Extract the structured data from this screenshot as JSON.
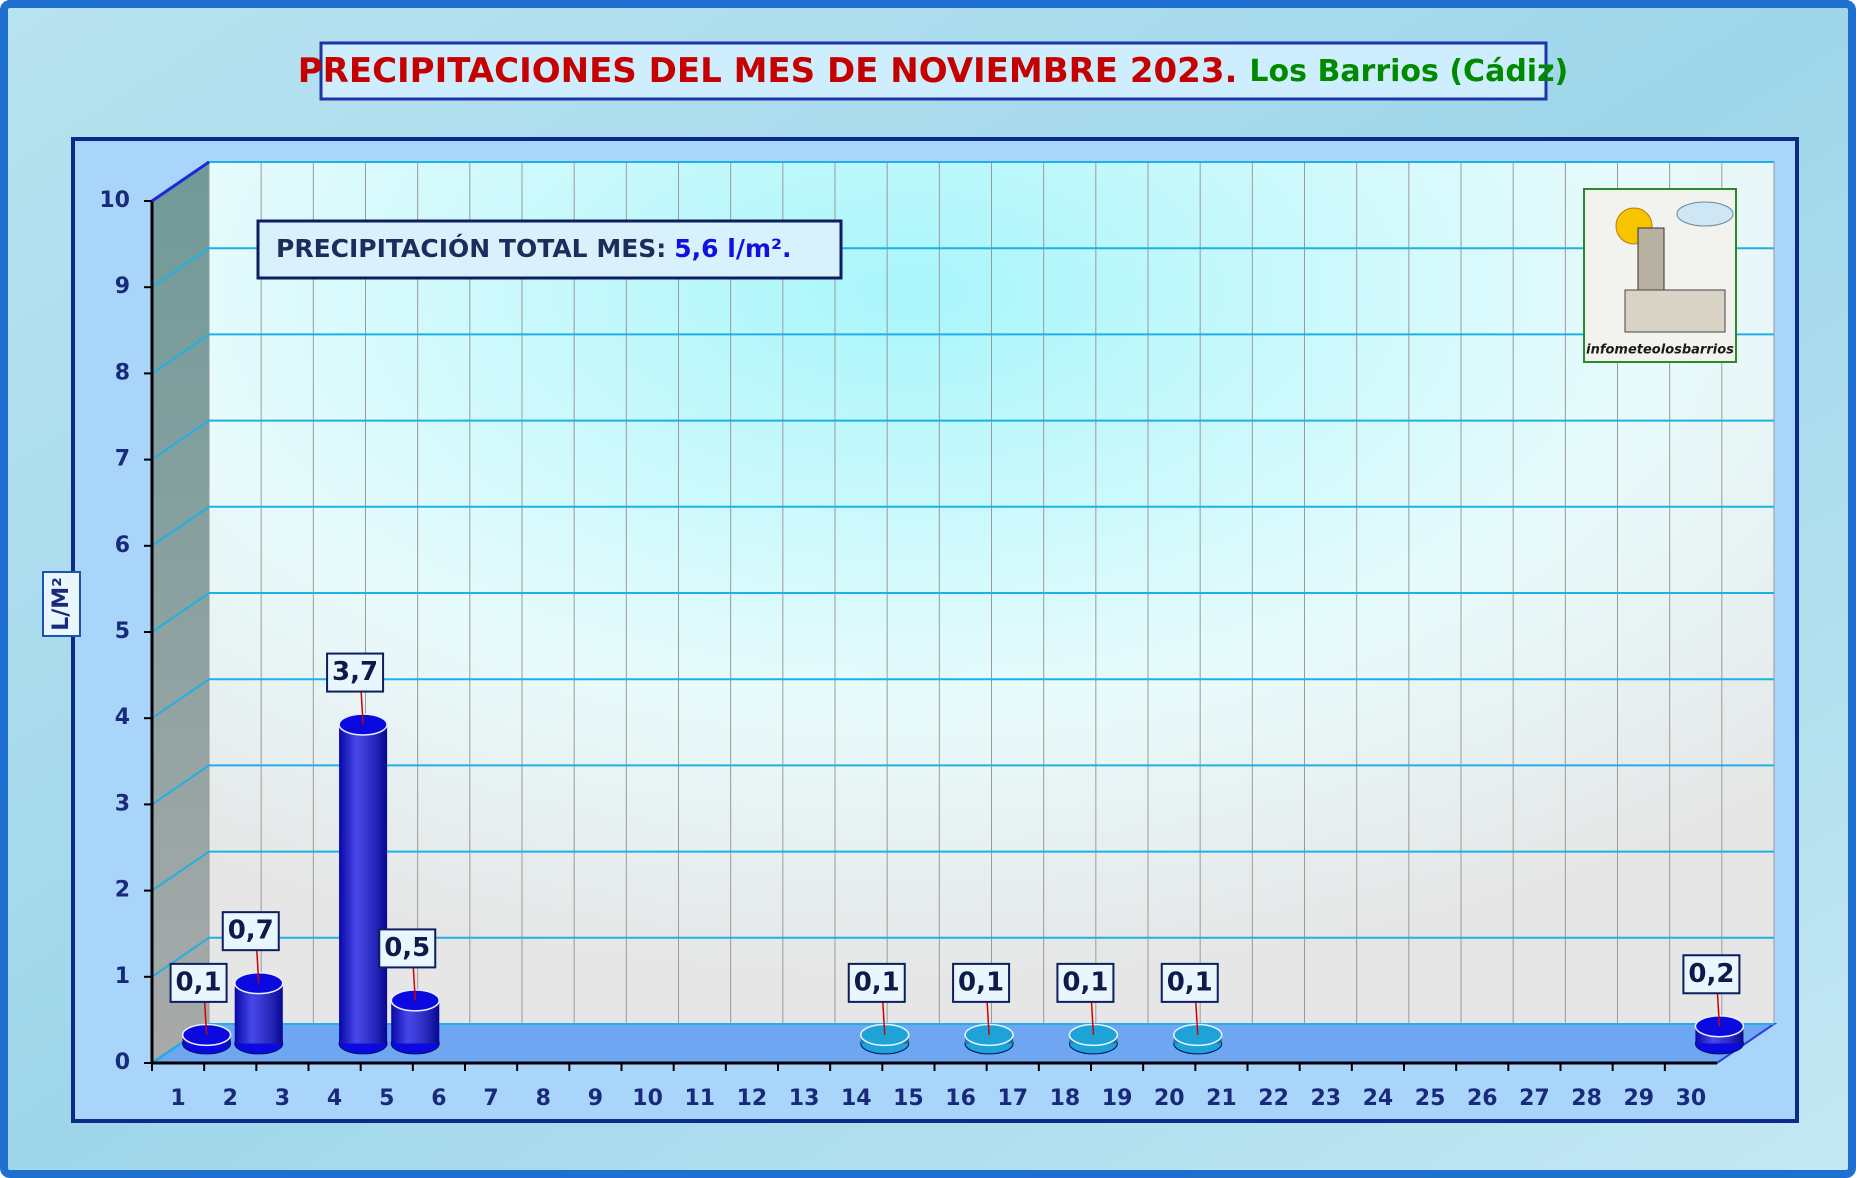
{
  "chart_data": {
    "type": "bar3d",
    "title": "PRECIPITACIONES DEL MES DE NOVIEMBRE 2023.",
    "subtitle": "Los Barrios (Cádiz)",
    "annotation": {
      "label": "PRECIPITACIÓN TOTAL MES:",
      "value": "5,6  l/m²."
    },
    "y_label": "L/M²",
    "logo_text": "infometeolosbarrios",
    "categories": [
      "1",
      "2",
      "3",
      "4",
      "5",
      "6",
      "7",
      "8",
      "9",
      "10",
      "11",
      "12",
      "13",
      "14",
      "15",
      "16",
      "17",
      "18",
      "19",
      "20",
      "21",
      "22",
      "23",
      "24",
      "25",
      "26",
      "27",
      "28",
      "29",
      "30"
    ],
    "values": [
      0.1,
      0.7,
      null,
      3.7,
      0.5,
      null,
      null,
      null,
      null,
      null,
      null,
      null,
      null,
      0.1,
      null,
      0.1,
      null,
      0.1,
      null,
      0.1,
      null,
      null,
      null,
      null,
      null,
      null,
      null,
      null,
      null,
      0.2
    ],
    "value_labels": [
      "0,1",
      "0,7",
      null,
      "3,7",
      "0,5",
      null,
      null,
      null,
      null,
      null,
      null,
      null,
      null,
      "0,1",
      null,
      "0,1",
      null,
      "0,1",
      null,
      "0,1",
      null,
      null,
      null,
      null,
      null,
      null,
      null,
      null,
      null,
      "0,2"
    ],
    "colors": [
      "#0a0ae0",
      "#0a0ae0",
      null,
      "#0a0ae0",
      "#0a0ae0",
      null,
      null,
      null,
      null,
      null,
      null,
      null,
      null,
      "#1ea3d8",
      null,
      "#1ea3d8",
      null,
      "#1ea3d8",
      null,
      "#1ea3d8",
      null,
      null,
      null,
      null,
      null,
      null,
      null,
      null,
      null,
      "#0a0ae0"
    ],
    "ylim": [
      0,
      10
    ],
    "yticks": [
      0,
      1,
      2,
      3,
      4,
      5,
      6,
      7,
      8,
      9,
      10
    ],
    "grid": true
  }
}
